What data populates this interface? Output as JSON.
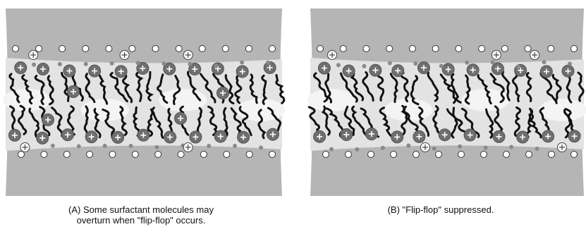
{
  "panels": [
    {
      "id": "A",
      "caption_line1": "(A) Some surfactant molecules may",
      "caption_line2": "overturn when \"flip-flop\" occurs."
    },
    {
      "id": "B",
      "caption_line1": "(B) \"Flip-flop\" suppressed."
    }
  ],
  "colors": {
    "background_gray": "#b5b5b5",
    "inner_band": "#e3e3e3",
    "headgroup": "#6f6f6f",
    "counterion_fill": "#ffffff",
    "tail": "#111111"
  },
  "icons": {
    "headgroup": "positive-headgroup-icon",
    "counterion": "counterion-icon",
    "small_ion": "small-ion-dot-icon",
    "tail": "hydrocarbon-tail-icon"
  }
}
